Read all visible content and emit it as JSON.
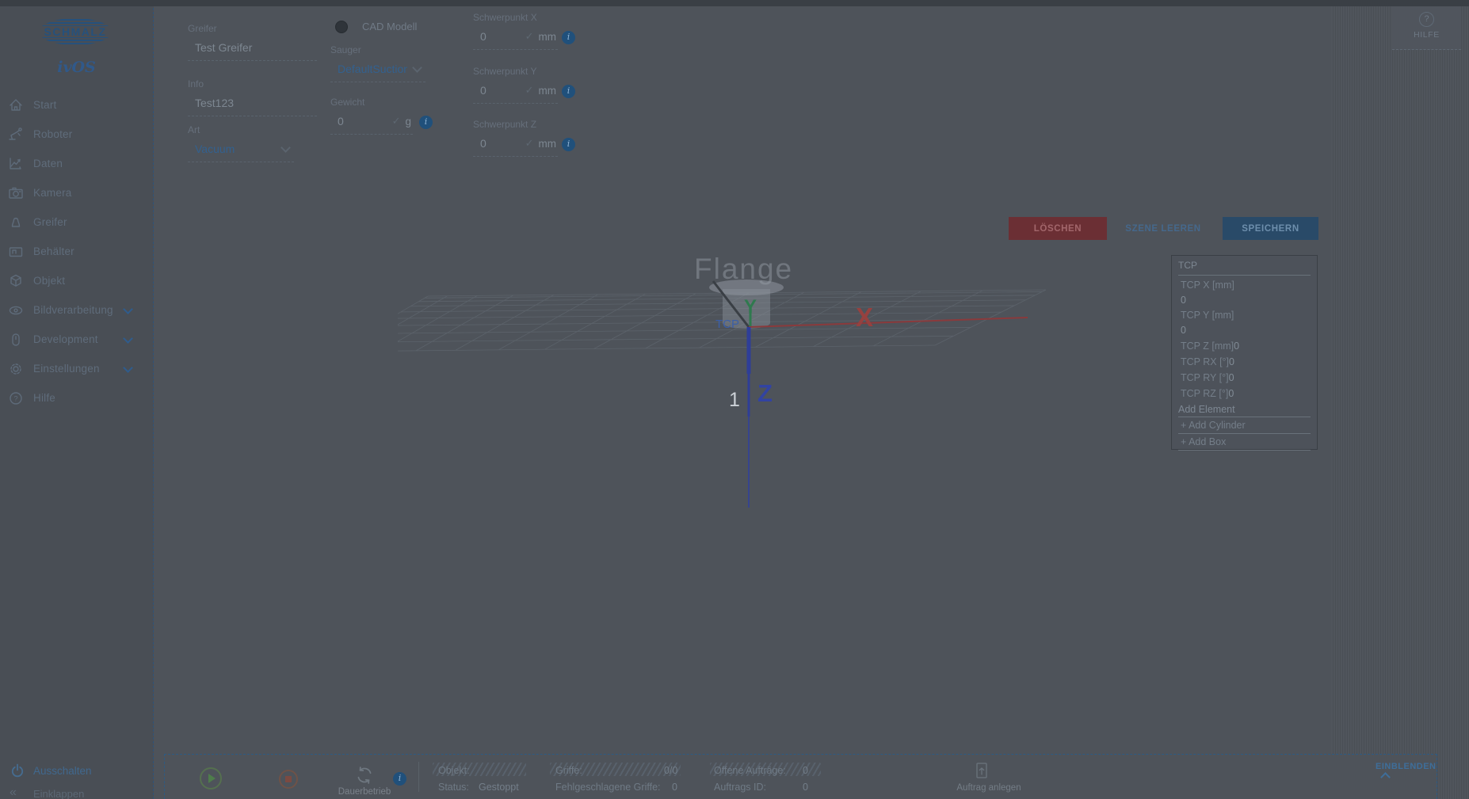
{
  "brand": {
    "logo_text": "SCHMALZ",
    "product_name": "ivOS"
  },
  "sidebar": {
    "items": [
      {
        "label": "Start"
      },
      {
        "label": "Roboter"
      },
      {
        "label": "Daten"
      },
      {
        "label": "Kamera"
      },
      {
        "label": "Greifer"
      },
      {
        "label": "Behälter"
      },
      {
        "label": "Objekt"
      },
      {
        "label": "Bildverarbeitung",
        "expandable": true
      },
      {
        "label": "Development",
        "expandable": true
      },
      {
        "label": "Einstellungen",
        "expandable": true
      },
      {
        "label": "Hilfe"
      }
    ],
    "power_label": "Ausschalten",
    "collapse_label": "Einklappen"
  },
  "help_button": {
    "label": "HILFE"
  },
  "form": {
    "greifer": {
      "label": "Greifer",
      "value": "Test Greifer"
    },
    "info": {
      "label": "Info",
      "value": "Test123"
    },
    "art": {
      "label": "Art",
      "value": "Vacuum"
    },
    "cad": {
      "label": "CAD Modell"
    },
    "sauger": {
      "label": "Sauger",
      "value": "DefaultSuctionC"
    },
    "gewicht": {
      "label": "Gewicht",
      "value": "0",
      "unit": "g"
    },
    "schwerpunkt_x": {
      "label": "Schwerpunkt X",
      "value": "0",
      "unit": "mm"
    },
    "schwerpunkt_y": {
      "label": "Schwerpunkt Y",
      "value": "0",
      "unit": "mm"
    },
    "schwerpunkt_z": {
      "label": "Schwerpunkt Z",
      "value": "0",
      "unit": "mm"
    }
  },
  "actions": {
    "delete_label": "LÖSCHEN",
    "clear_label": "SZENE LEEREN",
    "save_label": "SPEICHERN"
  },
  "viewport": {
    "flange_label": "Flange",
    "tcp_label": "TCP",
    "axis_x": "X",
    "axis_y": "Y",
    "axis_z": "Z",
    "marker": "1"
  },
  "tcp_panel": {
    "title": "TCP",
    "rows": [
      {
        "label": "TCP X [mm]",
        "value": "0"
      },
      {
        "label": "TCP Y [mm]",
        "value": "0"
      },
      {
        "label": "TCP Z [mm]",
        "value": "0"
      },
      {
        "label": "TCP RX [°]",
        "value": "0"
      },
      {
        "label": "TCP RY [°]",
        "value": "0"
      },
      {
        "label": "TCP RZ [°]",
        "value": "0"
      }
    ],
    "add_title": "Add Element",
    "add_cylinder": "+ Add Cylinder",
    "add_box": "+ Add Box"
  },
  "statusbar": {
    "dauerbetrieb_label": "Dauerbetrieb",
    "objekt_label": "Objekt:",
    "status_label": "Status:",
    "status_value": "Gestoppt",
    "griffe_label": "Griffe:",
    "griffe_value": "0/0",
    "fehlgeschlagene_label": "Fehlgeschlagene Griffe:",
    "fehlgeschlagene_value": "0",
    "offene_label": "Offene Aufträge:",
    "offene_value": "0",
    "auftrags_id_label": "Auftrags ID:",
    "auftrags_id_value": "0",
    "auftrag_anlegen_label": "Auftrag anlegen",
    "einblenden_label": "EINBLENDEN"
  },
  "colors": {
    "accent_blue": "#33618f",
    "delete_red": "#6b2f34",
    "save_blue": "#294a68",
    "axis_x_red": "#8a3a3c",
    "axis_y_green": "#2f7a4e",
    "axis_z_blue": "#2e3e98"
  }
}
